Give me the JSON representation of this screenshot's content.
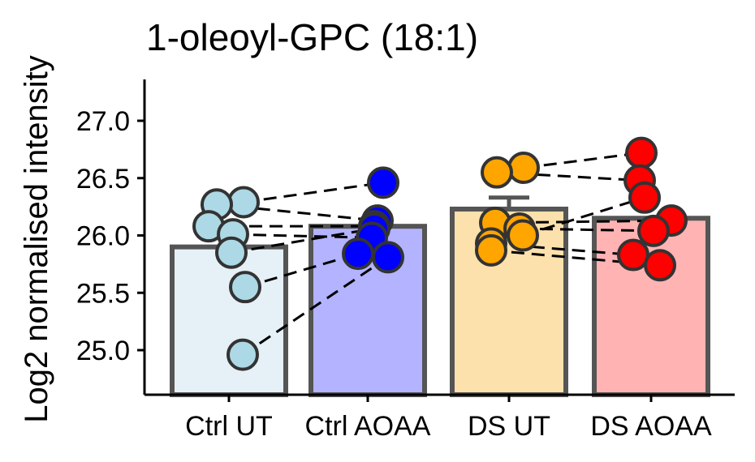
{
  "chart_data": {
    "type": "bar",
    "title": "1-oleoyl-GPC (18:1)",
    "xlabel": "",
    "ylabel": "Log2 normalised intensity",
    "ylim": [
      24.6,
      27.4
    ],
    "yticks": [
      "25.0",
      "25.5",
      "26.0",
      "26.5",
      "27.0"
    ],
    "ytick_values": [
      25.0,
      25.5,
      26.0,
      26.5,
      27.0
    ],
    "categories": [
      "Ctrl UT",
      "Ctrl AOAA",
      "DS UT",
      "DS AOAA"
    ],
    "means": [
      25.9,
      26.08,
      26.23,
      26.15
    ],
    "error": [
      null,
      null,
      0.1,
      null
    ],
    "bar_fill": [
      "#e6f1f7",
      "#b3b3ff",
      "#fde1ad",
      "#ffb3b3"
    ],
    "bar_stroke": "#555555",
    "point_fill": [
      "#add8e6",
      "#0000ff",
      "#ffa500",
      "#ff0000"
    ],
    "point_stroke": "#333333",
    "points": [
      [
        26.29,
        26.27,
        26.08,
        26.01,
        25.85,
        25.55,
        24.96
      ],
      [
        26.46,
        26.13,
        26.08,
        26.06,
        25.98,
        25.84,
        25.81
      ],
      [
        26.59,
        26.55,
        26.11,
        26.06,
        26.0,
        25.93,
        25.87
      ],
      [
        26.72,
        26.48,
        26.33,
        26.13,
        26.04,
        25.83,
        25.74
      ]
    ],
    "pairs": [
      {
        "groups": [
          0,
          1
        ],
        "links": [
          [
            0,
            0
          ],
          [
            1,
            1
          ],
          [
            2,
            2
          ],
          [
            3,
            4
          ],
          [
            4,
            3
          ],
          [
            5,
            5
          ],
          [
            6,
            6
          ]
        ]
      },
      {
        "groups": [
          2,
          3
        ],
        "links": [
          [
            0,
            0
          ],
          [
            1,
            1
          ],
          [
            2,
            3
          ],
          [
            3,
            4
          ],
          [
            4,
            2
          ],
          [
            5,
            5
          ],
          [
            6,
            6
          ]
        ]
      }
    ]
  }
}
